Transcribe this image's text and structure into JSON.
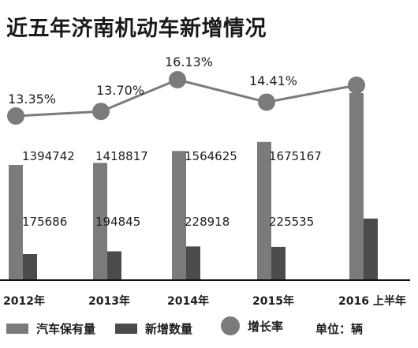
{
  "chart_data": {
    "type": "bar",
    "title": "近五年济南机动车新增情况",
    "unit_label": "单位：辆",
    "categories": [
      "2012年",
      "2013年",
      "2014年",
      "2015年",
      "2016 上半年"
    ],
    "series": [
      {
        "name": "汽车保有量",
        "kind": "bar",
        "color": "#7b7b7b",
        "values": [
          1394742,
          1418817,
          1564625,
          1675167,
          null
        ],
        "labels": [
          "1394742",
          "1418817",
          "1564625",
          "1675167",
          ""
        ]
      },
      {
        "name": "新增数量",
        "kind": "bar",
        "color": "#4b4b4b",
        "values": [
          175686,
          194845,
          228918,
          225535,
          null
        ],
        "labels": [
          "175686",
          "194845",
          "228918",
          "225535",
          ""
        ]
      },
      {
        "name": "增长率",
        "kind": "line",
        "color": "#7b7b7b",
        "values": [
          13.35,
          13.7,
          16.13,
          14.41,
          null
        ],
        "labels": [
          "13.35%",
          "13.70%",
          "16.13%",
          "14.41%",
          ""
        ]
      }
    ],
    "ylim": [
      0,
      2000000
    ],
    "grid": false,
    "legend_position": "bottom"
  }
}
